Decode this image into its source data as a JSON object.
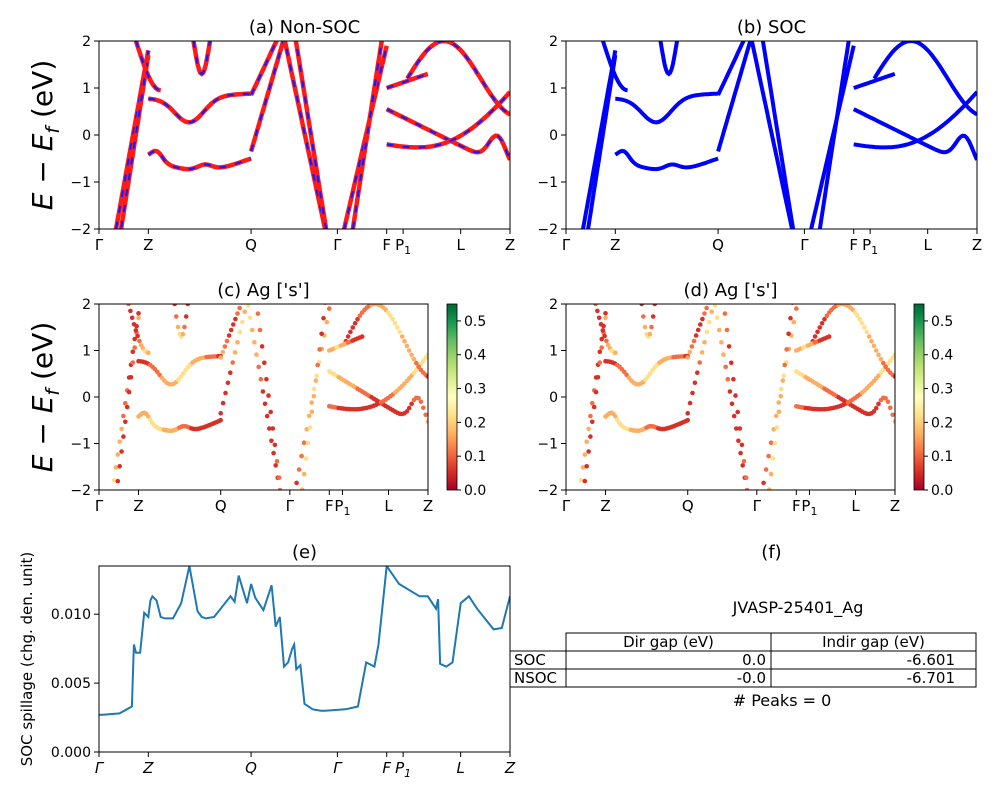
{
  "colors": {
    "nonsoc_line": "#ff1a1a",
    "nonsoc_dash": "#1a1aff",
    "soc_line": "#0000ff",
    "spillage_line": "#1f77b4",
    "cmap": [
      "#a50026",
      "#d73027",
      "#f46d43",
      "#fdae61",
      "#fee08b",
      "#ffffbf",
      "#d9ef8b",
      "#a6d96a",
      "#66bd63",
      "#1a9850",
      "#006837"
    ]
  },
  "kpath": {
    "labels": [
      "Γ",
      "Z",
      "Q",
      "Γ",
      "F",
      "P",
      "L",
      "Z"
    ],
    "positions": [
      0,
      0.12,
      0.37,
      0.58,
      0.7,
      0.74,
      0.88,
      1.0
    ],
    "p1_sub": "1"
  },
  "chart_data": [
    {
      "id": "a",
      "type": "line",
      "title": "(a) Non-SOC",
      "ylabel_main": "E − E",
      "ylabel_sub": "f",
      "ylabel_unit": " (eV)",
      "ylim": [
        -2,
        2
      ],
      "yticks": [
        "−2",
        "−1",
        "0",
        "1",
        "2"
      ]
    },
    {
      "id": "b",
      "type": "line",
      "title": "(b) SOC",
      "ylim": [
        -2,
        2
      ],
      "yticks": [
        "−2",
        "−1",
        "0",
        "1",
        "2"
      ]
    },
    {
      "id": "c",
      "type": "scatter",
      "title": "(c)  Ag ['s']",
      "ylabel_main": "E − E",
      "ylabel_sub": "f",
      "ylabel_unit": " (eV)",
      "ylim": [
        -2,
        2
      ],
      "yticks": [
        "−2",
        "−1",
        "0",
        "1",
        "2"
      ],
      "colorbar_ticks": [
        "0.0",
        "0.1",
        "0.2",
        "0.3",
        "0.4",
        "0.5"
      ],
      "colorbar_range": [
        0,
        0.55
      ]
    },
    {
      "id": "d",
      "type": "scatter",
      "title": "(d) Ag ['s']",
      "ylim": [
        -2,
        2
      ],
      "yticks": [
        "−2",
        "−1",
        "0",
        "1",
        "2"
      ],
      "colorbar_ticks": [
        "0.0",
        "0.1",
        "0.2",
        "0.3",
        "0.4",
        "0.5"
      ],
      "colorbar_range": [
        0,
        0.55
      ]
    },
    {
      "id": "e",
      "type": "line",
      "title": "(e)",
      "ylabel": "SOC spillage (chg. den. unit)",
      "ylim": [
        0,
        0.0135
      ],
      "yticks": [
        "0.000",
        "0.005",
        "0.010"
      ],
      "ytick_values": [
        0,
        0.005,
        0.01
      ],
      "x": [
        0,
        0.01,
        0.05,
        0.08,
        0.085,
        0.09,
        0.1,
        0.11,
        0.12,
        0.125,
        0.13,
        0.14,
        0.15,
        0.16,
        0.18,
        0.2,
        0.22,
        0.24,
        0.25,
        0.26,
        0.28,
        0.32,
        0.33,
        0.34,
        0.36,
        0.37,
        0.38,
        0.4,
        0.42,
        0.43,
        0.44,
        0.45,
        0.46,
        0.47,
        0.475,
        0.48,
        0.49,
        0.5,
        0.52,
        0.54,
        0.55,
        0.6,
        0.63,
        0.65,
        0.67,
        0.68,
        0.7,
        0.73,
        0.78,
        0.8,
        0.82,
        0.825,
        0.83,
        0.845,
        0.86,
        0.88,
        0.9,
        0.92,
        0.96,
        0.98,
        1.0
      ],
      "y": [
        0.0027,
        0.0027,
        0.0028,
        0.0033,
        0.0078,
        0.0072,
        0.0072,
        0.0101,
        0.0098,
        0.011,
        0.0113,
        0.011,
        0.0098,
        0.0097,
        0.0097,
        0.0108,
        0.0135,
        0.0102,
        0.0098,
        0.0097,
        0.0098,
        0.0113,
        0.0109,
        0.0128,
        0.0108,
        0.0122,
        0.0112,
        0.0103,
        0.0121,
        0.0091,
        0.0098,
        0.0062,
        0.0065,
        0.0075,
        0.0078,
        0.006,
        0.0063,
        0.0035,
        0.0031,
        0.003,
        0.003,
        0.0031,
        0.0033,
        0.0065,
        0.0062,
        0.0078,
        0.0135,
        0.0122,
        0.0113,
        0.0113,
        0.0104,
        0.0111,
        0.0064,
        0.0062,
        0.0065,
        0.0108,
        0.0113,
        0.0104,
        0.0089,
        0.009,
        0.0113
      ]
    }
  ],
  "panel_f": {
    "title": "(f)",
    "material": "JVASP-25401_Ag",
    "table": {
      "headers": [
        "Dir gap (eV)",
        "Indir gap (eV)"
      ],
      "rows": [
        {
          "label": "SOC",
          "values": [
            "0.0",
            "-6.601"
          ]
        },
        {
          "label": "NSOC",
          "values": [
            "-0.0",
            "-6.701"
          ]
        }
      ]
    },
    "peaks": "# Peaks = 0"
  }
}
